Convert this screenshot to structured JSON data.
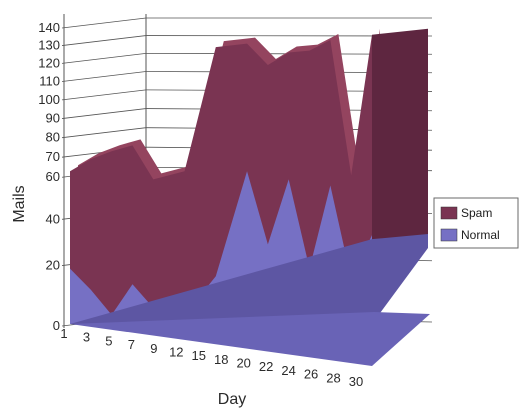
{
  "chart_data": {
    "type": "area",
    "view": "3d",
    "title": "",
    "xlabel": "Day",
    "ylabel": "Mails",
    "ylim": [
      0,
      140
    ],
    "y_ticks": [
      0,
      20,
      40,
      60,
      70,
      80,
      90,
      100,
      110,
      120,
      130,
      140
    ],
    "x_tick_labels": [
      "1",
      "3",
      "5",
      "7",
      "9",
      "12",
      "15",
      "18",
      "20",
      "22",
      "24",
      "26",
      "28",
      "30"
    ],
    "legend": {
      "position": "right",
      "entries": [
        "Spam",
        "Normal"
      ]
    },
    "grid": true,
    "colors": {
      "Spam": "#7a3452",
      "Normal": "#7670c4",
      "spam_top": "#94445f",
      "spam_side": "#5e2640",
      "normal_side": "#5d56a3",
      "wall": "#ffffff",
      "gridline": "#555555"
    },
    "x": [
      1,
      3,
      5,
      7,
      9,
      12,
      15,
      18,
      20,
      22,
      24,
      26,
      28,
      30
    ],
    "series": [
      {
        "name": "Normal",
        "values": [
          18,
          10,
          2,
          12,
          4,
          2,
          15,
          62,
          28,
          58,
          18,
          55,
          14,
          32
        ]
      },
      {
        "name": "Spam",
        "values": [
          62,
          68,
          72,
          75,
          58,
          62,
          128,
          130,
          118,
          125,
          126,
          132,
          60,
          135
        ]
      }
    ]
  }
}
